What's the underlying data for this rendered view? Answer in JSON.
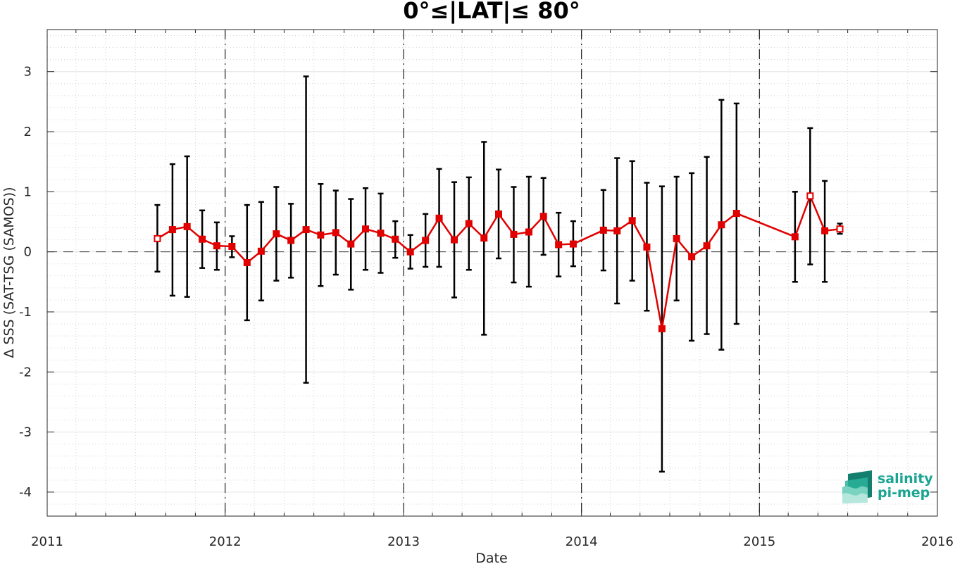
{
  "chart_data": {
    "type": "line",
    "title": "0°≤|LAT|≤ 80°",
    "xlabel": "Date",
    "ylabel": "Δ SSS (SAT-TSG (SAMOS))",
    "xlim": [
      "2011-01-01",
      "2016-01-01"
    ],
    "ylim": [
      -4.4,
      3.7
    ],
    "x_ticks": [
      "2011",
      "2012",
      "2013",
      "2014",
      "2015",
      "2016"
    ],
    "y_ticks": [
      -4,
      -3,
      -2,
      -1,
      0,
      1,
      2,
      3
    ],
    "grid": true,
    "minor_grid": true,
    "reference_line_y": 0,
    "year_separators": [
      "2012-01-01",
      "2013-01-01",
      "2014-01-01",
      "2015-01-01"
    ],
    "series": [
      {
        "color": "#e00000",
        "marker": "square",
        "errorbar_color": "#000000",
        "points": [
          {
            "date": "2011-08-15",
            "mean": 0.22,
            "low": -0.33,
            "high": 0.78
          },
          {
            "date": "2011-09-15",
            "mean": 0.37,
            "low": -0.73,
            "high": 1.46
          },
          {
            "date": "2011-10-15",
            "mean": 0.42,
            "low": -0.75,
            "high": 1.59
          },
          {
            "date": "2011-11-15",
            "mean": 0.21,
            "low": -0.27,
            "high": 0.69
          },
          {
            "date": "2011-12-15",
            "mean": 0.1,
            "low": -0.3,
            "high": 0.49
          },
          {
            "date": "2012-01-15",
            "mean": 0.09,
            "low": -0.09,
            "high": 0.26
          },
          {
            "date": "2012-02-15",
            "mean": -0.18,
            "low": -1.14,
            "high": 0.78
          },
          {
            "date": "2012-03-15",
            "mean": 0.01,
            "low": -0.81,
            "high": 0.83
          },
          {
            "date": "2012-04-15",
            "mean": 0.3,
            "low": -0.48,
            "high": 1.08
          },
          {
            "date": "2012-05-15",
            "mean": 0.19,
            "low": -0.43,
            "high": 0.8
          },
          {
            "date": "2012-06-15",
            "mean": 0.37,
            "low": -2.18,
            "high": 2.92
          },
          {
            "date": "2012-07-15",
            "mean": 0.28,
            "low": -0.57,
            "high": 1.13
          },
          {
            "date": "2012-08-15",
            "mean": 0.32,
            "low": -0.38,
            "high": 1.02
          },
          {
            "date": "2012-09-15",
            "mean": 0.13,
            "low": -0.63,
            "high": 0.88
          },
          {
            "date": "2012-10-15",
            "mean": 0.38,
            "low": -0.3,
            "high": 1.06
          },
          {
            "date": "2012-11-15",
            "mean": 0.31,
            "low": -0.35,
            "high": 0.97
          },
          {
            "date": "2012-12-15",
            "mean": 0.21,
            "low": -0.1,
            "high": 0.51
          },
          {
            "date": "2013-01-15",
            "mean": 0.0,
            "low": -0.28,
            "high": 0.28
          },
          {
            "date": "2013-02-15",
            "mean": 0.19,
            "low": -0.25,
            "high": 0.63
          },
          {
            "date": "2013-03-15",
            "mean": 0.56,
            "low": -0.25,
            "high": 1.38
          },
          {
            "date": "2013-04-15",
            "mean": 0.2,
            "low": -0.76,
            "high": 1.16
          },
          {
            "date": "2013-05-15",
            "mean": 0.47,
            "low": -0.3,
            "high": 1.24
          },
          {
            "date": "2013-06-15",
            "mean": 0.23,
            "low": -1.38,
            "high": 1.83
          },
          {
            "date": "2013-07-15",
            "mean": 0.63,
            "low": -0.11,
            "high": 1.37
          },
          {
            "date": "2013-08-15",
            "mean": 0.29,
            "low": -0.51,
            "high": 1.08
          },
          {
            "date": "2013-09-15",
            "mean": 0.33,
            "low": -0.58,
            "high": 1.25
          },
          {
            "date": "2013-10-15",
            "mean": 0.59,
            "low": -0.05,
            "high": 1.23
          },
          {
            "date": "2013-11-15",
            "mean": 0.12,
            "low": -0.41,
            "high": 0.65
          },
          {
            "date": "2013-12-15",
            "mean": 0.13,
            "low": -0.24,
            "high": 0.51
          },
          {
            "date": "2014-02-15",
            "mean": 0.36,
            "low": -0.31,
            "high": 1.03
          },
          {
            "date": "2014-03-15",
            "mean": 0.35,
            "low": -0.86,
            "high": 1.56
          },
          {
            "date": "2014-04-15",
            "mean": 0.52,
            "low": -0.48,
            "high": 1.51
          },
          {
            "date": "2014-05-15",
            "mean": 0.08,
            "low": -0.98,
            "high": 1.15
          },
          {
            "date": "2014-06-15",
            "mean": -1.28,
            "low": -3.66,
            "high": 1.09
          },
          {
            "date": "2014-07-15",
            "mean": 0.22,
            "low": -0.81,
            "high": 1.25
          },
          {
            "date": "2014-08-15",
            "mean": -0.08,
            "low": -1.48,
            "high": 1.31
          },
          {
            "date": "2014-09-15",
            "mean": 0.1,
            "low": -1.37,
            "high": 1.58
          },
          {
            "date": "2014-10-15",
            "mean": 0.45,
            "low": -1.63,
            "high": 2.53
          },
          {
            "date": "2014-11-15",
            "mean": 0.64,
            "low": -1.2,
            "high": 2.47
          },
          {
            "date": "2015-03-15",
            "mean": 0.25,
            "low": -0.5,
            "high": 1.0
          },
          {
            "date": "2015-04-15",
            "mean": 0.93,
            "low": -0.21,
            "high": 2.06
          },
          {
            "date": "2015-05-15",
            "mean": 0.35,
            "low": -0.5,
            "high": 1.18
          },
          {
            "date": "2015-06-15",
            "mean": 0.38,
            "low": 0.3,
            "high": 0.47
          }
        ],
        "hollow_markers": [
          "2011-08-15",
          "2015-04-15",
          "2015-06-15"
        ]
      }
    ]
  },
  "logo": {
    "line1": "salinity",
    "line2": "pi-mep",
    "text_color": "#1aa593",
    "icon": "salinity-waves-icon"
  }
}
